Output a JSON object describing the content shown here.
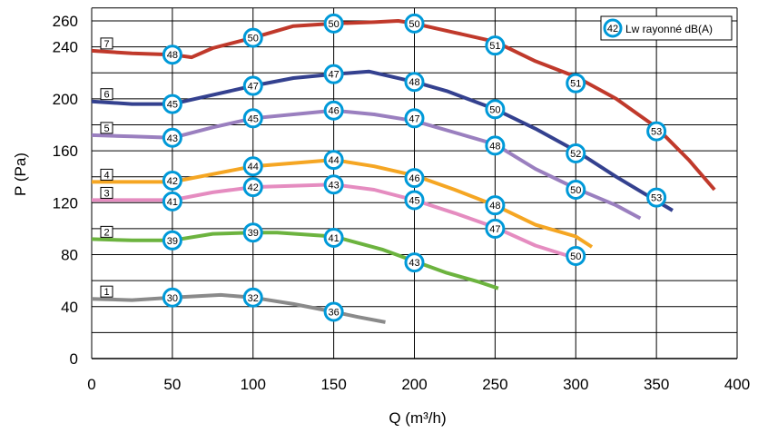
{
  "chart_data": {
    "type": "line",
    "xlabel": "Q (m³/h)",
    "ylabel": "P (Pa)",
    "xlim": [
      0,
      400
    ],
    "ylim": [
      0,
      270
    ],
    "x_ticks": [
      0,
      50,
      100,
      150,
      200,
      250,
      300,
      350,
      400
    ],
    "y_ticks": [
      0,
      40,
      80,
      120,
      160,
      200,
      240,
      260
    ],
    "grid": true,
    "legend": {
      "label": "Lw rayonné dB(A)",
      "marker_value": "42",
      "placement": "top-right"
    },
    "series": [
      {
        "label": "1",
        "color": "#8a8a8a",
        "points": [
          [
            0,
            46
          ],
          [
            25,
            45
          ],
          [
            50,
            47
          ],
          [
            80,
            49
          ],
          [
            100,
            47
          ],
          [
            125,
            42
          ],
          [
            150,
            36
          ],
          [
            165,
            32
          ],
          [
            182,
            28
          ]
        ],
        "markers": [
          {
            "x": 50,
            "y": 47,
            "value": "30"
          },
          {
            "x": 100,
            "y": 47,
            "value": "32"
          },
          {
            "x": 150,
            "y": 36,
            "value": "36"
          }
        ]
      },
      {
        "label": "2",
        "color": "#6cb33f",
        "points": [
          [
            0,
            92
          ],
          [
            25,
            91
          ],
          [
            50,
            91
          ],
          [
            75,
            96
          ],
          [
            100,
            97
          ],
          [
            115,
            97
          ],
          [
            150,
            94
          ],
          [
            180,
            84
          ],
          [
            200,
            75
          ],
          [
            220,
            66
          ],
          [
            240,
            59
          ],
          [
            252,
            54
          ]
        ],
        "markers": [
          {
            "x": 50,
            "y": 91,
            "value": "39"
          },
          {
            "x": 100,
            "y": 97,
            "value": "39"
          },
          {
            "x": 150,
            "y": 93,
            "value": "41"
          },
          {
            "x": 200,
            "y": 74,
            "value": "43"
          }
        ]
      },
      {
        "label": "3",
        "color": "#e58cc0",
        "points": [
          [
            0,
            122
          ],
          [
            25,
            122
          ],
          [
            50,
            122
          ],
          [
            75,
            128
          ],
          [
            100,
            132
          ],
          [
            150,
            134
          ],
          [
            175,
            130
          ],
          [
            200,
            122
          ],
          [
            225,
            112
          ],
          [
            250,
            101
          ],
          [
            275,
            87
          ],
          [
            298,
            78
          ]
        ],
        "markers": [
          {
            "x": 50,
            "y": 121,
            "value": "41"
          },
          {
            "x": 100,
            "y": 132,
            "value": "42"
          },
          {
            "x": 150,
            "y": 134,
            "value": "43"
          },
          {
            "x": 200,
            "y": 122,
            "value": "45"
          },
          {
            "x": 250,
            "y": 100,
            "value": "47"
          },
          {
            "x": 300,
            "y": 79,
            "value": "50"
          }
        ]
      },
      {
        "label": "4",
        "color": "#f5a623",
        "points": [
          [
            0,
            136
          ],
          [
            25,
            136
          ],
          [
            50,
            136
          ],
          [
            75,
            142
          ],
          [
            100,
            148
          ],
          [
            150,
            153
          ],
          [
            175,
            148
          ],
          [
            200,
            141
          ],
          [
            225,
            130
          ],
          [
            250,
            118
          ],
          [
            275,
            103
          ],
          [
            300,
            94
          ],
          [
            310,
            86
          ]
        ],
        "markers": [
          {
            "x": 50,
            "y": 137,
            "value": "42"
          },
          {
            "x": 100,
            "y": 148,
            "value": "44"
          },
          {
            "x": 150,
            "y": 153,
            "value": "44"
          },
          {
            "x": 200,
            "y": 139,
            "value": "46"
          },
          {
            "x": 250,
            "y": 118,
            "value": "48"
          }
        ]
      },
      {
        "label": "5",
        "color": "#9a7fbf",
        "points": [
          [
            0,
            172
          ],
          [
            25,
            171
          ],
          [
            50,
            170
          ],
          [
            75,
            178
          ],
          [
            100,
            185
          ],
          [
            150,
            191
          ],
          [
            175,
            188
          ],
          [
            200,
            183
          ],
          [
            225,
            174
          ],
          [
            250,
            165
          ],
          [
            275,
            146
          ],
          [
            300,
            131
          ],
          [
            325,
            118
          ],
          [
            340,
            108
          ]
        ],
        "markers": [
          {
            "x": 50,
            "y": 170,
            "value": "43"
          },
          {
            "x": 100,
            "y": 185,
            "value": "45"
          },
          {
            "x": 150,
            "y": 191,
            "value": "46"
          },
          {
            "x": 200,
            "y": 185,
            "value": "47"
          },
          {
            "x": 250,
            "y": 164,
            "value": "48"
          },
          {
            "x": 300,
            "y": 130,
            "value": "50"
          }
        ]
      },
      {
        "label": "6",
        "color": "#34418f",
        "points": [
          [
            0,
            198
          ],
          [
            25,
            196
          ],
          [
            50,
            196
          ],
          [
            75,
            203
          ],
          [
            100,
            210
          ],
          [
            125,
            216
          ],
          [
            150,
            219
          ],
          [
            172,
            221
          ],
          [
            200,
            213
          ],
          [
            220,
            206
          ],
          [
            250,
            192
          ],
          [
            275,
            177
          ],
          [
            300,
            160
          ],
          [
            325,
            140
          ],
          [
            360,
            114
          ]
        ],
        "markers": [
          {
            "x": 50,
            "y": 196,
            "value": "45"
          },
          {
            "x": 100,
            "y": 210,
            "value": "47"
          },
          {
            "x": 150,
            "y": 219,
            "value": "47"
          },
          {
            "x": 200,
            "y": 213,
            "value": "48"
          },
          {
            "x": 250,
            "y": 192,
            "value": "50"
          },
          {
            "x": 300,
            "y": 158,
            "value": "52"
          },
          {
            "x": 350,
            "y": 124,
            "value": "53"
          }
        ]
      },
      {
        "label": "7",
        "color": "#c0392b",
        "points": [
          [
            0,
            237
          ],
          [
            25,
            235
          ],
          [
            50,
            234
          ],
          [
            62,
            232
          ],
          [
            75,
            239
          ],
          [
            100,
            247
          ],
          [
            125,
            256
          ],
          [
            150,
            258
          ],
          [
            175,
            259
          ],
          [
            190,
            260
          ],
          [
            200,
            258
          ],
          [
            225,
            251
          ],
          [
            250,
            244
          ],
          [
            275,
            229
          ],
          [
            300,
            217
          ],
          [
            325,
            200
          ],
          [
            350,
            178
          ],
          [
            370,
            153
          ],
          [
            386,
            130
          ]
        ],
        "markers": [
          {
            "x": 50,
            "y": 234,
            "value": "48"
          },
          {
            "x": 100,
            "y": 247,
            "value": "50"
          },
          {
            "x": 150,
            "y": 258,
            "value": "50"
          },
          {
            "x": 200,
            "y": 258,
            "value": "50"
          },
          {
            "x": 250,
            "y": 241,
            "value": "51"
          },
          {
            "x": 300,
            "y": 212,
            "value": "51"
          },
          {
            "x": 350,
            "y": 175,
            "value": "53"
          }
        ]
      }
    ],
    "marker_style": {
      "ring_color": "#0099d8",
      "fill": "#ffffff"
    }
  }
}
